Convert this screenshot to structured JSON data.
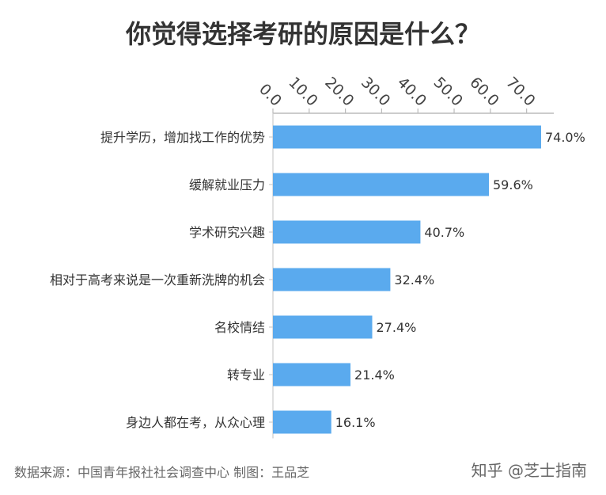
{
  "title": "你觉得选择考研的原因是什么？",
  "source": "数据来源：中国青年报社社会调查中心 制图：王品芝",
  "credit": "知乎 @芝士指南",
  "chart_data": {
    "type": "bar",
    "orientation": "horizontal",
    "categories": [
      "提升学历，增加找工作的优势",
      "缓解就业压力",
      "学术研究兴趣",
      "相对于高考来说是一次重新洗牌的机会",
      "名校情结",
      "转专业",
      "身边人都在考，从众心理"
    ],
    "values": [
      74.0,
      59.6,
      40.7,
      32.4,
      27.4,
      21.4,
      16.1
    ],
    "data_labels": [
      "74.0%",
      "59.6%",
      "40.7%",
      "32.4%",
      "27.4%",
      "21.4%",
      "16.1%"
    ],
    "x_ticks": [
      "0.0",
      "10.0",
      "20.0",
      "30.0",
      "40.0",
      "50.0",
      "60.0",
      "70.0"
    ],
    "x_tick_values": [
      0,
      10,
      20,
      30,
      40,
      50,
      60,
      70
    ],
    "xlim": [
      0,
      77.5
    ],
    "axis_position": "top",
    "grid": false,
    "bar_color": "#5aaaee"
  }
}
